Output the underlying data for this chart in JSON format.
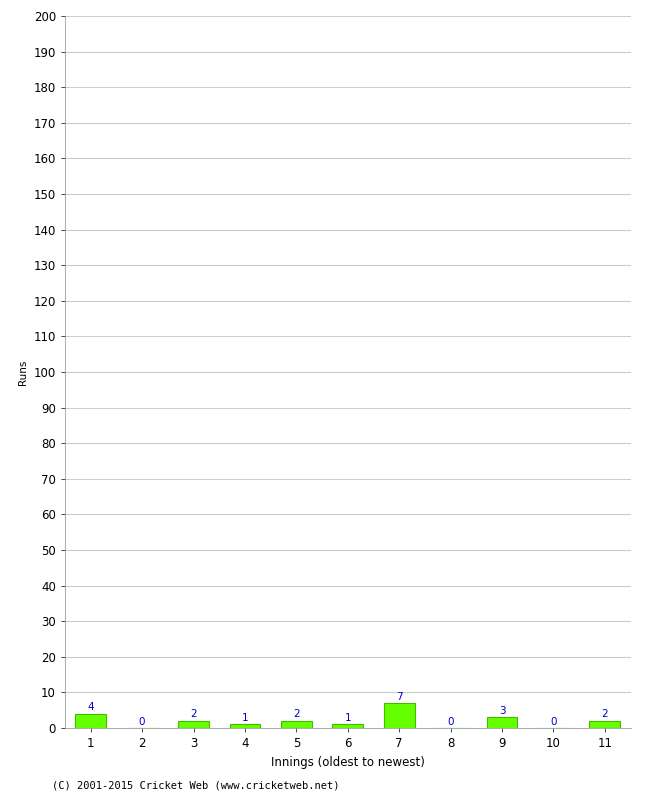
{
  "xlabel": "Innings (oldest to newest)",
  "ylabel": "Runs",
  "categories": [
    1,
    2,
    3,
    4,
    5,
    6,
    7,
    8,
    9,
    10,
    11
  ],
  "values": [
    4,
    0,
    2,
    1,
    2,
    1,
    7,
    0,
    3,
    0,
    2
  ],
  "bar_color": "#66ff00",
  "bar_edge_color": "#44bb00",
  "label_color": "#0000cc",
  "ylim": [
    0,
    200
  ],
  "yticks": [
    0,
    10,
    20,
    30,
    40,
    50,
    60,
    70,
    80,
    90,
    100,
    110,
    120,
    130,
    140,
    150,
    160,
    170,
    180,
    190,
    200
  ],
  "background_color": "#ffffff",
  "grid_color": "#cccccc",
  "footer": "(C) 2001-2015 Cricket Web (www.cricketweb.net)",
  "label_fontsize": 7.5,
  "axis_fontsize": 8.5,
  "ylabel_fontsize": 7.5,
  "footer_fontsize": 7.5
}
